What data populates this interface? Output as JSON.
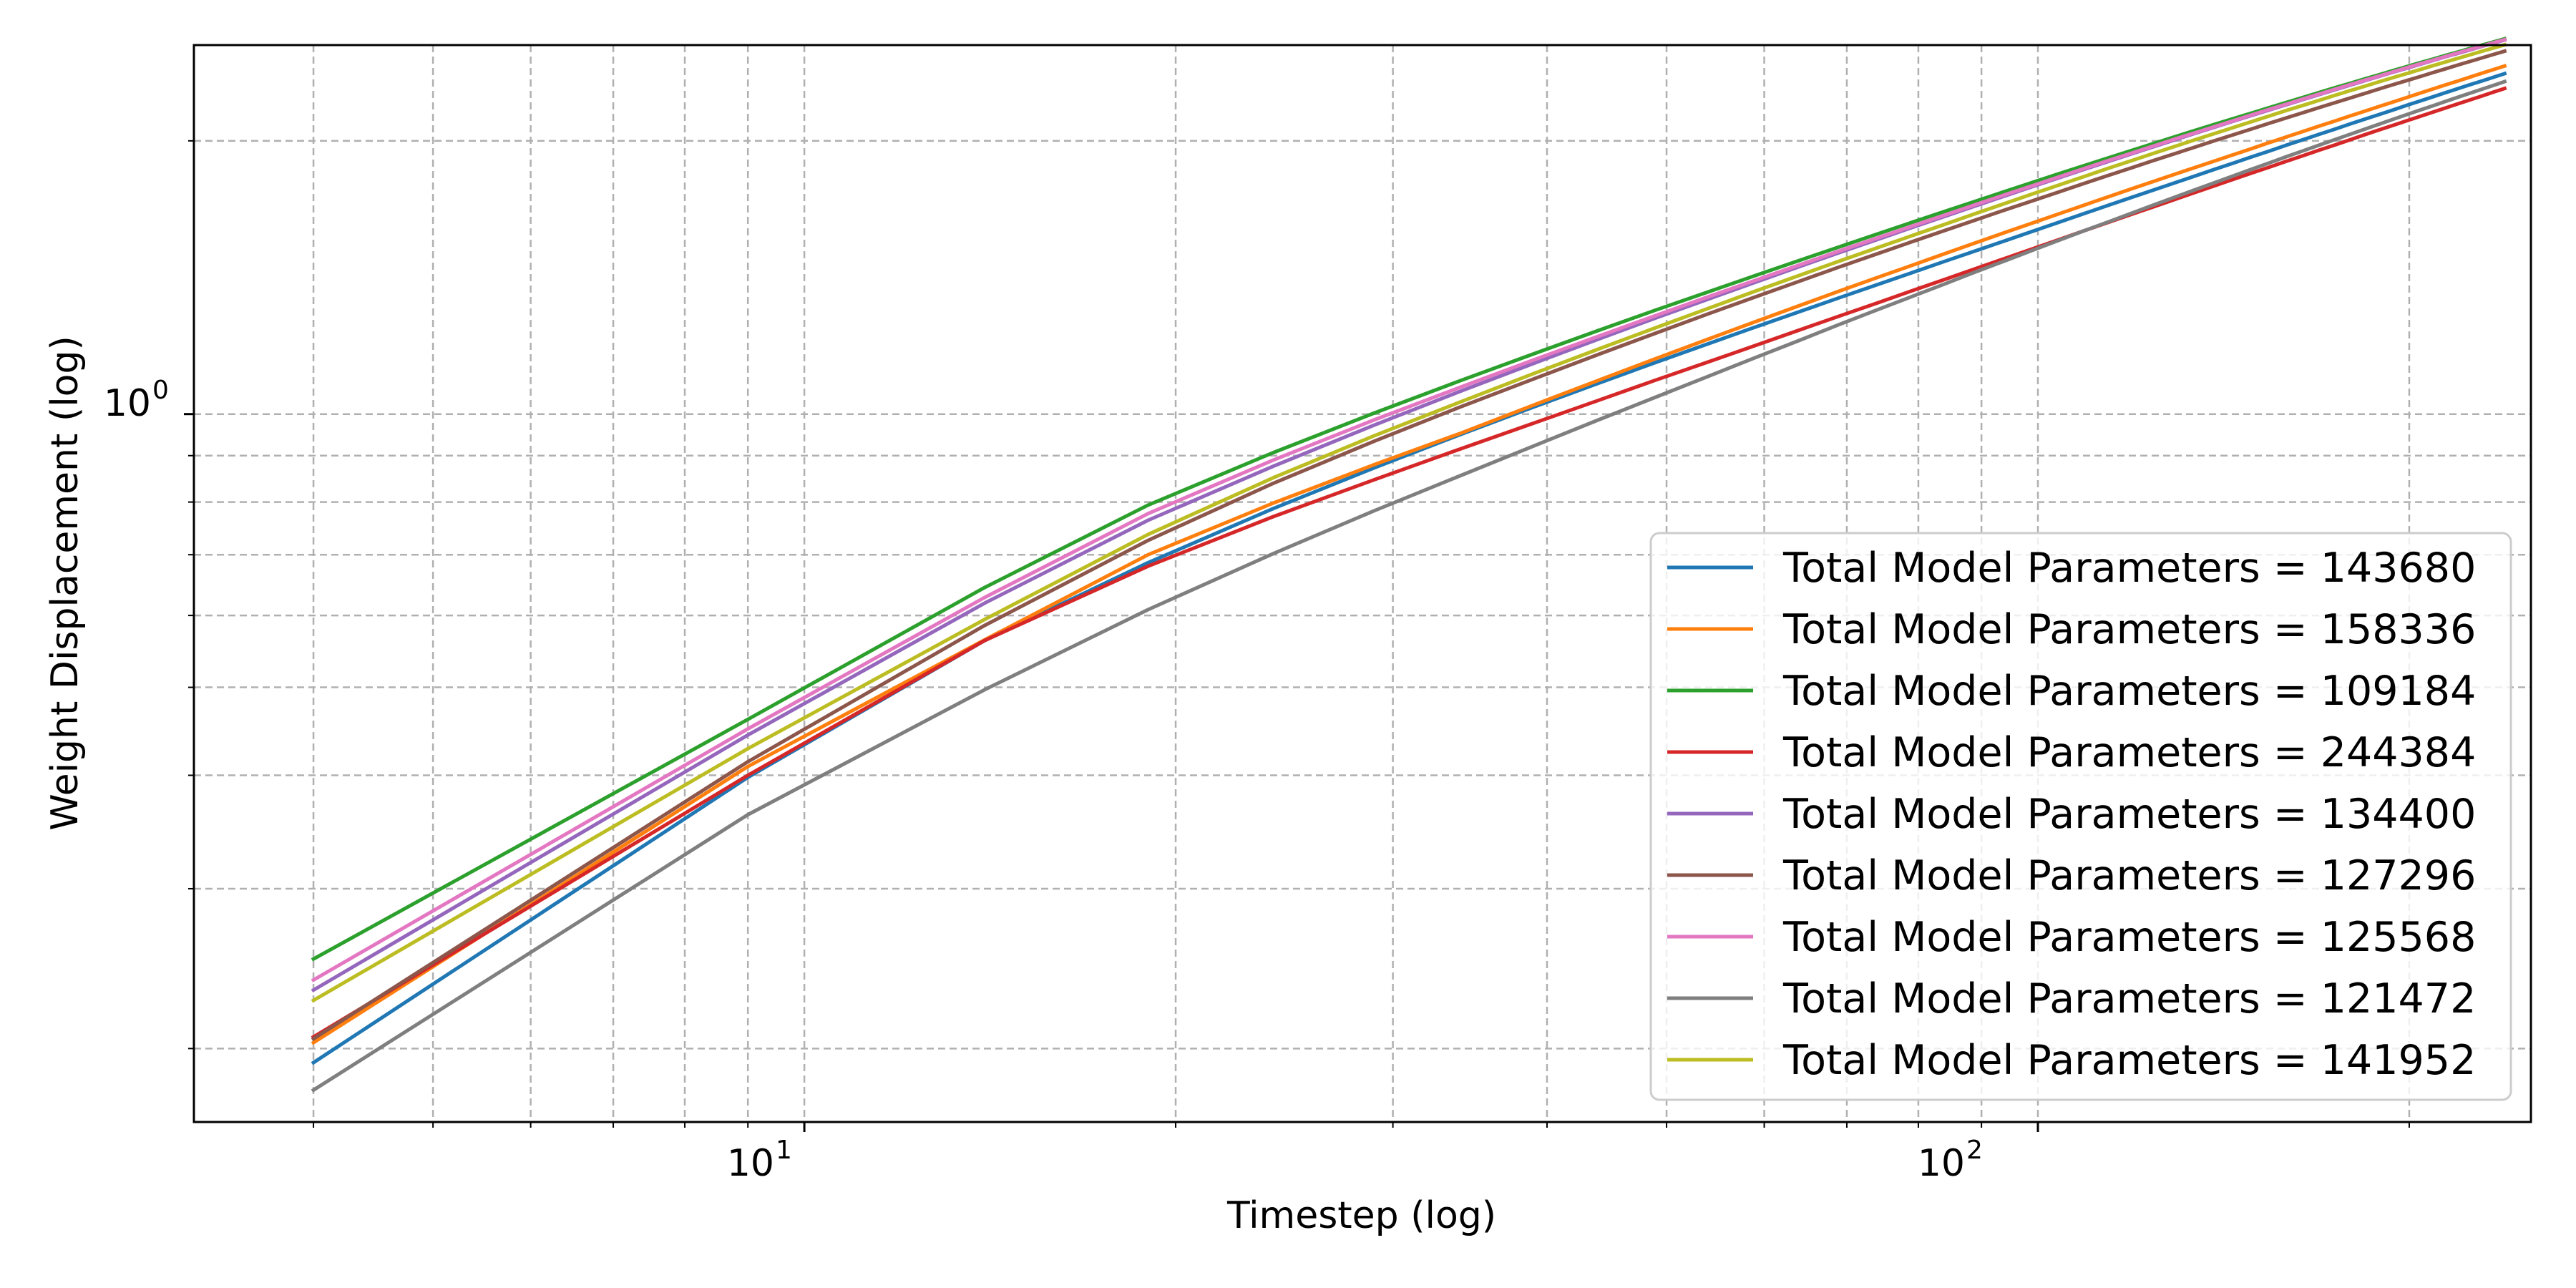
{
  "chart_data": {
    "type": "line",
    "title": "",
    "xlabel": "Timestep (log)",
    "ylabel": "Weight Displacement (log)",
    "xscale": "log",
    "yscale": "log",
    "xlim": [
      3.2,
      251
    ],
    "ylim": [
      0.166,
      2.55
    ],
    "grid": true,
    "legend_position": "lower-right",
    "x_tick_labels": [
      {
        "value": 10,
        "base": "10",
        "exp": "1"
      },
      {
        "value": 100,
        "base": "10",
        "exp": "2"
      }
    ],
    "y_tick_labels": [
      {
        "value": 1,
        "base": "10",
        "exp": "0"
      }
    ],
    "x": [
      4,
      9,
      14,
      19,
      24,
      29,
      34,
      39,
      44,
      49,
      54,
      59,
      64,
      69,
      74,
      79,
      84,
      89,
      94,
      99,
      104,
      109,
      114,
      119,
      124,
      129,
      134,
      139,
      144,
      149,
      154,
      159,
      164,
      169,
      174,
      179,
      184,
      189,
      194,
      199,
      204,
      209,
      214,
      219,
      224,
      229,
      234,
      239
    ],
    "series": [
      {
        "name": "Total Model Parameters = 143680",
        "color": "#1f77b4",
        "values": [
          0.193,
          0.398,
          0.563,
          0.686,
          0.787,
          0.873,
          0.949,
          1.018,
          1.081,
          1.14,
          1.195,
          1.247,
          1.296,
          1.343,
          1.388,
          1.431,
          1.473,
          1.513,
          1.552,
          1.59,
          1.627,
          1.663,
          1.698,
          1.732,
          1.765,
          1.797,
          1.829,
          1.86,
          1.89,
          1.92,
          1.949,
          1.978,
          2.006,
          2.033,
          2.06,
          2.087,
          2.113,
          2.138,
          2.163,
          2.188,
          2.212,
          2.236,
          2.26,
          2.283,
          2.306,
          2.328,
          2.35,
          2.372
        ]
      },
      {
        "name": "Total Model Parameters = 158336",
        "color": "#ff7f0e",
        "values": [
          0.203,
          0.409,
          0.564,
          0.7,
          0.798,
          0.88,
          0.952,
          1.023,
          1.089,
          1.151,
          1.209,
          1.264,
          1.316,
          1.366,
          1.413,
          1.458,
          1.502,
          1.544,
          1.585,
          1.624,
          1.662,
          1.699,
          1.735,
          1.77,
          1.804,
          1.837,
          1.869,
          1.9,
          1.931,
          1.961,
          1.991,
          2.02,
          2.048,
          2.076,
          2.103,
          2.13,
          2.156,
          2.182,
          2.207,
          2.232,
          2.257,
          2.281,
          2.305,
          2.328,
          2.351,
          2.374,
          2.396,
          2.418
        ]
      },
      {
        "name": "Total Model Parameters = 109184",
        "color": "#2ca02c",
        "values": [
          0.251,
          0.461,
          0.644,
          0.794,
          0.907,
          1.003,
          1.088,
          1.165,
          1.236,
          1.302,
          1.363,
          1.421,
          1.476,
          1.528,
          1.578,
          1.626,
          1.672,
          1.716,
          1.759,
          1.8,
          1.84,
          1.878,
          1.915,
          1.951,
          1.986,
          2.02,
          2.053,
          2.085,
          2.116,
          2.146,
          2.176,
          2.205,
          2.233,
          2.261,
          2.288,
          2.314,
          2.34,
          2.365,
          2.39,
          2.414,
          2.438,
          2.461,
          2.484,
          2.506,
          2.528,
          2.549,
          2.57,
          2.591
        ]
      },
      {
        "name": "Total Model Parameters = 244384",
        "color": "#d62728",
        "values": [
          0.206,
          0.4,
          0.563,
          0.68,
          0.771,
          0.847,
          0.915,
          0.977,
          1.035,
          1.09,
          1.141,
          1.19,
          1.237,
          1.282,
          1.325,
          1.367,
          1.407,
          1.446,
          1.484,
          1.521,
          1.557,
          1.592,
          1.626,
          1.659,
          1.691,
          1.723,
          1.754,
          1.784,
          1.814,
          1.843,
          1.871,
          1.899,
          1.926,
          1.953,
          1.979,
          2.005,
          2.031,
          2.056,
          2.08,
          2.104,
          2.128,
          2.151,
          2.174,
          2.197,
          2.219,
          2.241,
          2.263,
          2.284
        ]
      },
      {
        "name": "Total Model Parameters = 134400",
        "color": "#9467bd",
        "values": [
          0.232,
          0.443,
          0.619,
          0.764,
          0.876,
          0.973,
          1.059,
          1.137,
          1.209,
          1.276,
          1.338,
          1.397,
          1.453,
          1.506,
          1.556,
          1.605,
          1.651,
          1.696,
          1.739,
          1.781,
          1.821,
          1.86,
          1.898,
          1.934,
          1.97,
          2.004,
          2.038,
          2.07,
          2.102,
          2.133,
          2.163,
          2.192,
          2.221,
          2.249,
          2.276,
          2.303,
          2.329,
          2.355,
          2.38,
          2.404,
          2.428,
          2.452,
          2.475,
          2.497,
          2.519,
          2.541,
          2.562,
          2.583
        ]
      },
      {
        "name": "Total Model Parameters = 127296",
        "color": "#8c564b",
        "values": [
          0.205,
          0.414,
          0.585,
          0.726,
          0.839,
          0.934,
          1.018,
          1.093,
          1.163,
          1.228,
          1.289,
          1.346,
          1.4,
          1.452,
          1.501,
          1.548,
          1.593,
          1.636,
          1.678,
          1.718,
          1.757,
          1.795,
          1.832,
          1.867,
          1.902,
          1.935,
          1.968,
          2.0,
          2.031,
          2.061,
          2.091,
          2.12,
          2.148,
          2.176,
          2.203,
          2.229,
          2.255,
          2.281,
          2.306,
          2.33,
          2.354,
          2.378,
          2.401,
          2.424,
          2.446,
          2.468,
          2.49,
          2.511
        ]
      },
      {
        "name": "Total Model Parameters = 125568",
        "color": "#e377c2",
        "values": [
          0.238,
          0.45,
          0.628,
          0.777,
          0.89,
          0.986,
          1.07,
          1.147,
          1.218,
          1.284,
          1.346,
          1.404,
          1.459,
          1.512,
          1.562,
          1.61,
          1.656,
          1.701,
          1.744,
          1.785,
          1.825,
          1.864,
          1.902,
          1.938,
          1.973,
          2.008,
          2.041,
          2.073,
          2.105,
          2.136,
          2.166,
          2.195,
          2.224,
          2.252,
          2.279,
          2.306,
          2.332,
          2.357,
          2.382,
          2.407,
          2.431,
          2.454,
          2.477,
          2.5,
          2.522,
          2.543,
          2.565,
          2.585
        ]
      },
      {
        "name": "Total Model Parameters = 121472",
        "color": "#7f7f7f",
        "values": [
          0.18,
          0.362,
          0.497,
          0.609,
          0.702,
          0.783,
          0.855,
          0.922,
          0.985,
          1.044,
          1.1,
          1.154,
          1.205,
          1.255,
          1.302,
          1.347,
          1.391,
          1.434,
          1.475,
          1.515,
          1.554,
          1.592,
          1.628,
          1.664,
          1.699,
          1.733,
          1.766,
          1.798,
          1.83,
          1.861,
          1.891,
          1.921,
          1.95,
          1.978,
          2.006,
          2.033,
          2.06,
          2.086,
          2.112,
          2.137,
          2.162,
          2.186,
          2.21,
          2.234,
          2.257,
          2.28,
          2.302,
          2.324
        ]
      },
      {
        "name": "Total Model Parameters = 141952",
        "color": "#bcbd22",
        "values": [
          0.226,
          0.428,
          0.594,
          0.737,
          0.851,
          0.947,
          1.031,
          1.108,
          1.179,
          1.245,
          1.307,
          1.366,
          1.421,
          1.474,
          1.524,
          1.572,
          1.618,
          1.663,
          1.706,
          1.748,
          1.788,
          1.827,
          1.865,
          1.901,
          1.937,
          1.971,
          2.005,
          2.037,
          2.069,
          2.1,
          2.13,
          2.16,
          2.188,
          2.216,
          2.244,
          2.271,
          2.297,
          2.323,
          2.348,
          2.372,
          2.396,
          2.42,
          2.443,
          2.466,
          2.488,
          2.51,
          2.531,
          2.552
        ]
      }
    ]
  }
}
